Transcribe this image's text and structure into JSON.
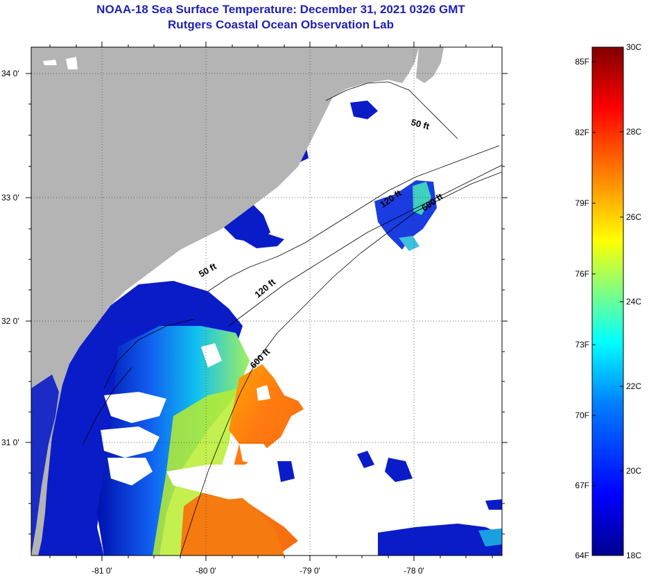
{
  "header": {
    "title": "NOAA-18 Sea Surface Temperature:  December 31, 2021 0326 GMT",
    "subtitle": "Rutgers Coastal Ocean Observation Lab"
  },
  "map": {
    "lon_labels": [
      "-81 0'",
      "-80 0'",
      "-79 0'",
      "-78 0'"
    ],
    "lat_labels": [
      "34 0'",
      "33 0'",
      "32 0'",
      "31 0'"
    ],
    "contours": {
      "c50_north": "50 ft",
      "c120_north": "120 ft",
      "c600_north": "600 ft",
      "c50_mid": "50 ft",
      "c120_mid": "120 ft",
      "c600_mid": "600 ft"
    },
    "colors": {
      "land": "#b4b4b4",
      "cloud": "#ffffff",
      "frame": "#000000"
    }
  },
  "colorbar": {
    "f_labels": [
      "85F",
      "82F",
      "79F",
      "76F",
      "73F",
      "70F",
      "67F",
      "64F"
    ],
    "c_labels": [
      "30C",
      "28C",
      "26C",
      "24C",
      "22C",
      "20C",
      "18C"
    ],
    "range_c": [
      18,
      30
    ],
    "colormap": [
      "#00008f",
      "#0000ff",
      "#0080ff",
      "#00ffff",
      "#80ff80",
      "#ffff00",
      "#ff8000",
      "#ff0000",
      "#800000"
    ]
  }
}
